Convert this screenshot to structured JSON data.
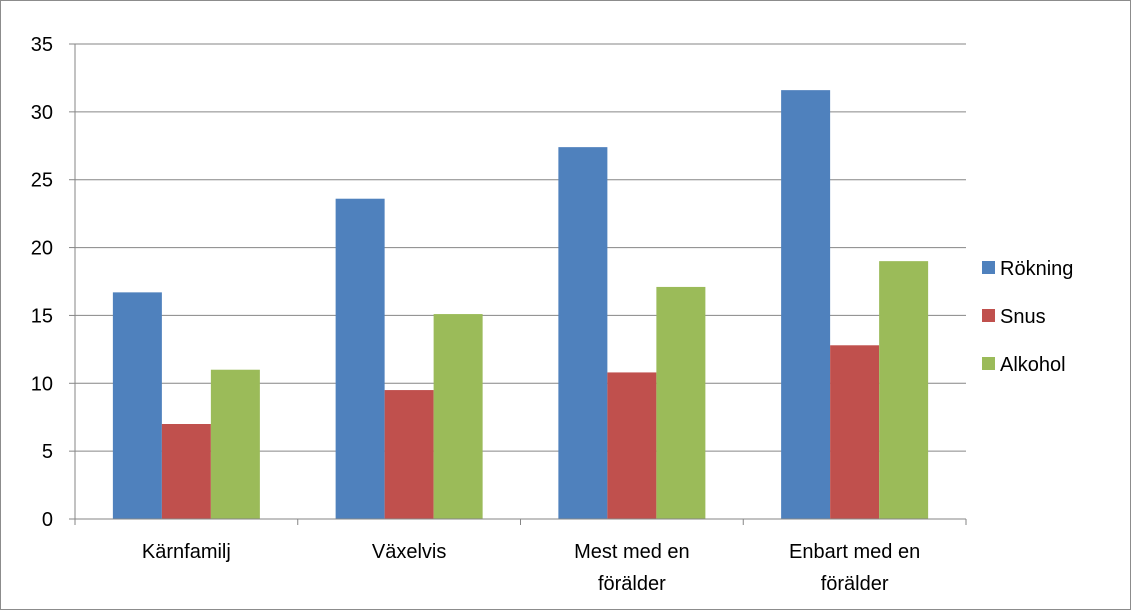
{
  "chart_data": {
    "type": "bar",
    "categories": [
      "Kärnfamilj",
      "Växelvis",
      "Mest med en förälder",
      "Enbart med en förälder"
    ],
    "category_lines": [
      [
        "Kärnfamilj"
      ],
      [
        "Växelvis"
      ],
      [
        "Mest med en",
        "förälder"
      ],
      [
        "Enbart med en",
        "förälder"
      ]
    ],
    "series": [
      {
        "name": "Rökning",
        "values": [
          16.7,
          23.6,
          27.4,
          31.6
        ],
        "color": "#4f81bd"
      },
      {
        "name": "Snus",
        "values": [
          7.0,
          9.5,
          10.8,
          12.8
        ],
        "color": "#c0504d"
      },
      {
        "name": "Alkohol",
        "values": [
          11.0,
          15.1,
          17.1,
          19.0
        ],
        "color": "#9bbb59"
      }
    ],
    "yticks": [
      "0",
      "5",
      "10",
      "15",
      "20",
      "25",
      "30",
      "35"
    ],
    "ylim": [
      0,
      35
    ],
    "title": "",
    "xlabel": "",
    "ylabel": "",
    "grid": true,
    "legend_position": "right"
  }
}
